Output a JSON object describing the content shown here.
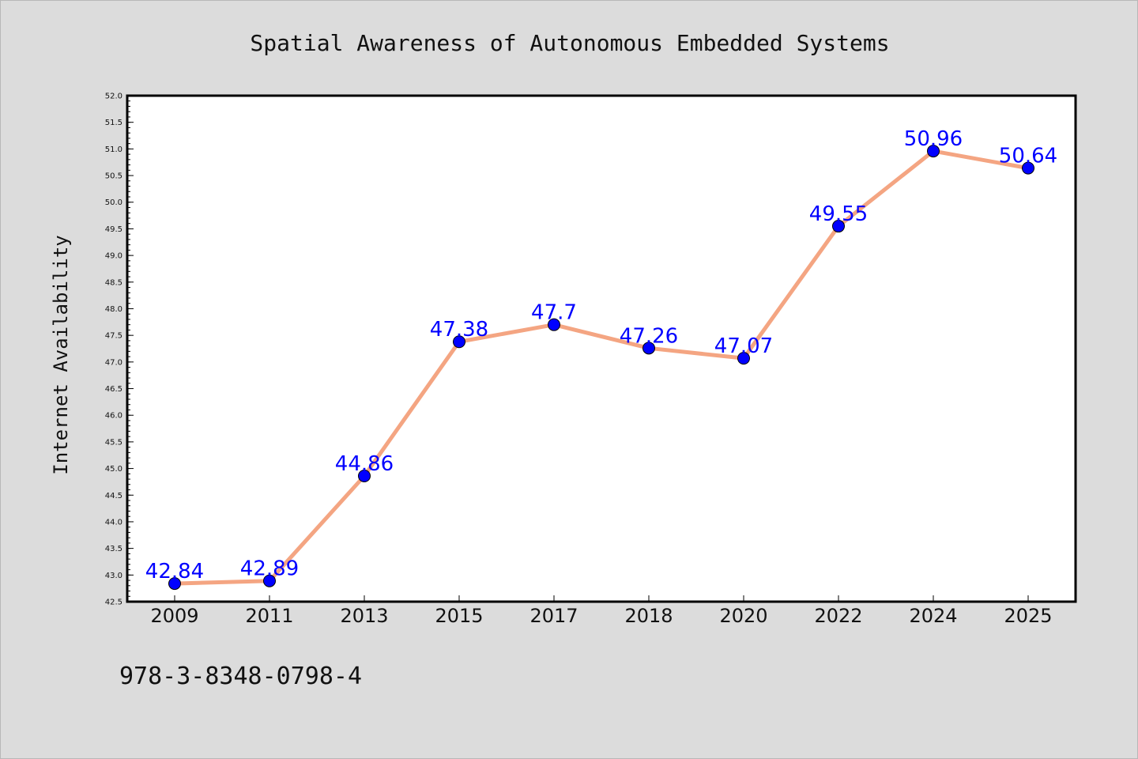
{
  "chart_data": {
    "type": "line",
    "title": "Spatial Awareness of Autonomous Embedded Systems",
    "xlabel": "",
    "ylabel": "Internet Availability",
    "categories": [
      "2009",
      "2011",
      "2013",
      "2015",
      "2017",
      "2018",
      "2020",
      "2022",
      "2024",
      "2025"
    ],
    "series": [
      {
        "values": [
          42.84,
          42.89,
          44.86,
          47.38,
          47.7,
          47.26,
          47.07,
          49.55,
          50.96,
          50.64
        ],
        "labels": [
          "42.84",
          "42.89",
          "44.86",
          "47.38",
          "47.7",
          "47.26",
          "47.07",
          "49.55",
          "50.96",
          "50.64"
        ]
      }
    ],
    "ylim": [
      42.5,
      52.0
    ],
    "yticks": [
      "42.5",
      "43.0",
      "43.5",
      "44.0",
      "44.5",
      "45.0",
      "45.5",
      "46.0",
      "46.5",
      "47.0",
      "47.5",
      "48.0",
      "48.5",
      "49.0",
      "49.5",
      "50.0",
      "50.5",
      "51.0",
      "51.5",
      "52.0"
    ],
    "grid": false,
    "legend": "none",
    "colors": {
      "line": "#f4a582",
      "marker": "#0000ff",
      "data_label": "#0000ff",
      "plot_background": "#ffffff",
      "page_background": "#dcdcdc"
    }
  },
  "footer": {
    "isbn": "978-3-8348-0798-4"
  }
}
